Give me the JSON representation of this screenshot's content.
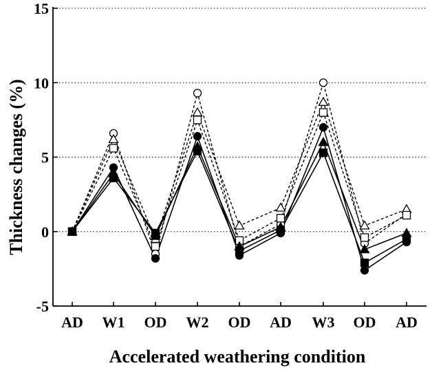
{
  "chart_data": {
    "type": "line",
    "xlabel": "Accelerated weathering condition",
    "ylabel": "Thickness changes (%)",
    "ylim": [
      -5,
      15
    ],
    "yticks": [
      -5,
      0,
      5,
      10,
      15
    ],
    "ytick_labels": [
      "-5",
      "0",
      "5",
      "10",
      "15"
    ],
    "categories": [
      "AD",
      "W1",
      "OD",
      "W2",
      "OD",
      "AD",
      "W3",
      "OD",
      "AD"
    ],
    "grid": "horizontal dotted",
    "series": [
      {
        "marker": "circle-open",
        "line": "dashed",
        "values": [
          0,
          6.6,
          -1.5,
          9.3,
          -1.0,
          0.5,
          10.0,
          -0.8,
          1.2
        ]
      },
      {
        "marker": "triangle-open",
        "line": "dashed",
        "values": [
          0,
          6.2,
          -0.5,
          8.0,
          0.4,
          1.6,
          8.7,
          0.4,
          1.5
        ]
      },
      {
        "marker": "square-open",
        "line": "dashed",
        "values": [
          0,
          5.6,
          -1.0,
          7.5,
          -0.6,
          0.9,
          8.0,
          -0.4,
          1.1
        ]
      },
      {
        "marker": "circle-filled",
        "line": "solid",
        "values": [
          0,
          4.3,
          -1.8,
          6.4,
          -1.6,
          -0.1,
          7.0,
          -2.6,
          -0.7
        ]
      },
      {
        "marker": "triangle-filled",
        "line": "solid",
        "values": [
          0,
          3.9,
          -0.3,
          5.7,
          -1.0,
          0.3,
          6.0,
          -1.2,
          -0.1
        ]
      },
      {
        "marker": "square-filled",
        "line": "solid",
        "values": [
          0,
          3.6,
          -0.1,
          5.4,
          -1.3,
          0.1,
          5.3,
          -2.1,
          -0.5
        ]
      }
    ]
  }
}
